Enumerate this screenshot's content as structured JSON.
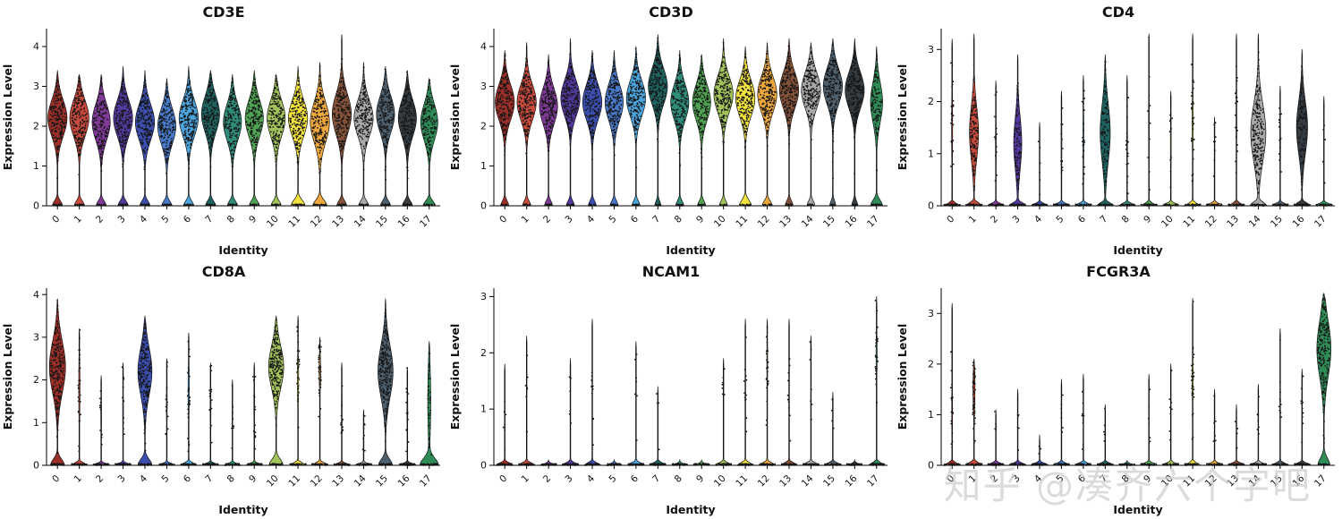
{
  "watermark": "知乎 @凑齐六个字吧",
  "axis": {
    "x_title": "Identity",
    "y_title": "Expression Level"
  },
  "chart_data": {
    "type": "violin",
    "description": "Single-cell gene expression violin plots (expression level per cluster identity) for six marker genes",
    "categories": [
      "0",
      "1",
      "2",
      "3",
      "4",
      "5",
      "6",
      "7",
      "8",
      "9",
      "10",
      "11",
      "12",
      "13",
      "14",
      "15",
      "16",
      "17"
    ],
    "palette": [
      "#9E2F28",
      "#C74A3C",
      "#7E3A96",
      "#53399E",
      "#3C4FB0",
      "#4878C8",
      "#4BA3DC",
      "#1F6360",
      "#2F8C78",
      "#4FA352",
      "#A2C25A",
      "#F2E23C",
      "#EEA83C",
      "#845239",
      "#A8A8A8",
      "#4E5F6E",
      "#343B41",
      "#2F8C57"
    ],
    "violin_fields": [
      "max_expression",
      "mode",
      "spread_sd",
      "body_width",
      "zero_width",
      "zero_height",
      "n_body_points",
      "n_zero_points"
    ],
    "panels": [
      {
        "title": "CD3E",
        "ylim": [
          0,
          4.45
        ],
        "yticks": [
          0,
          1,
          2,
          3,
          4
        ],
        "violins": [
          [
            3.4,
            2.2,
            0.45,
            0.95,
            0.5,
            0.12,
            200,
            25
          ],
          [
            3.3,
            2.2,
            0.45,
            0.95,
            0.5,
            0.12,
            190,
            25
          ],
          [
            3.3,
            2.1,
            0.45,
            0.9,
            0.5,
            0.12,
            170,
            25
          ],
          [
            3.5,
            2.2,
            0.45,
            0.95,
            0.5,
            0.12,
            200,
            25
          ],
          [
            3.4,
            2.1,
            0.45,
            0.95,
            0.5,
            0.12,
            200,
            25
          ],
          [
            3.2,
            2.0,
            0.45,
            0.9,
            0.5,
            0.12,
            180,
            25
          ],
          [
            3.5,
            2.2,
            0.45,
            0.95,
            0.5,
            0.12,
            200,
            25
          ],
          [
            3.4,
            2.3,
            0.45,
            0.9,
            0.5,
            0.12,
            180,
            25
          ],
          [
            3.3,
            2.1,
            0.45,
            0.9,
            0.5,
            0.12,
            170,
            25
          ],
          [
            3.4,
            2.2,
            0.45,
            0.9,
            0.5,
            0.12,
            180,
            25
          ],
          [
            3.3,
            2.2,
            0.45,
            0.9,
            0.5,
            0.12,
            170,
            25
          ],
          [
            3.5,
            2.2,
            0.45,
            0.95,
            0.7,
            0.14,
            190,
            30
          ],
          [
            3.6,
            2.1,
            0.5,
            0.95,
            0.7,
            0.14,
            190,
            30
          ],
          [
            4.3,
            2.3,
            0.5,
            0.95,
            0.5,
            0.12,
            200,
            25
          ],
          [
            3.6,
            2.2,
            0.45,
            0.95,
            0.5,
            0.12,
            190,
            25
          ],
          [
            3.5,
            2.3,
            0.45,
            0.9,
            0.5,
            0.12,
            180,
            25
          ],
          [
            3.4,
            2.2,
            0.45,
            0.9,
            0.5,
            0.12,
            180,
            25
          ],
          [
            3.2,
            2.1,
            0.45,
            0.85,
            0.6,
            0.12,
            150,
            25
          ]
        ]
      },
      {
        "title": "CD3D",
        "ylim": [
          0,
          4.45
        ],
        "yticks": [
          0,
          1,
          2,
          3,
          4
        ],
        "violins": [
          [
            3.9,
            2.6,
            0.45,
            0.95,
            0.4,
            0.12,
            210,
            20
          ],
          [
            4.1,
            2.6,
            0.45,
            0.95,
            0.4,
            0.12,
            210,
            20
          ],
          [
            3.8,
            2.5,
            0.45,
            0.9,
            0.4,
            0.12,
            180,
            20
          ],
          [
            4.2,
            2.7,
            0.45,
            0.95,
            0.4,
            0.12,
            210,
            20
          ],
          [
            3.9,
            2.6,
            0.45,
            0.95,
            0.4,
            0.12,
            200,
            20
          ],
          [
            3.9,
            2.6,
            0.45,
            0.9,
            0.4,
            0.12,
            190,
            20
          ],
          [
            4.0,
            2.7,
            0.45,
            0.95,
            0.4,
            0.12,
            200,
            20
          ],
          [
            4.3,
            3.0,
            0.45,
            0.95,
            0.3,
            0.12,
            210,
            15
          ],
          [
            3.9,
            2.6,
            0.45,
            0.9,
            0.4,
            0.12,
            180,
            20
          ],
          [
            3.8,
            2.6,
            0.45,
            0.9,
            0.4,
            0.12,
            180,
            20
          ],
          [
            4.2,
            2.8,
            0.45,
            0.95,
            0.4,
            0.12,
            200,
            20
          ],
          [
            4.0,
            2.7,
            0.45,
            0.95,
            0.6,
            0.14,
            200,
            25
          ],
          [
            4.1,
            2.8,
            0.45,
            0.95,
            0.5,
            0.12,
            200,
            20
          ],
          [
            4.2,
            2.9,
            0.45,
            0.95,
            0.4,
            0.12,
            200,
            20
          ],
          [
            4.1,
            2.9,
            0.45,
            0.95,
            0.4,
            0.12,
            200,
            20
          ],
          [
            4.2,
            3.0,
            0.45,
            0.95,
            0.3,
            0.12,
            210,
            15
          ],
          [
            4.2,
            2.9,
            0.45,
            0.95,
            0.3,
            0.12,
            210,
            15
          ],
          [
            4.0,
            2.6,
            0.5,
            0.6,
            0.6,
            0.14,
            120,
            25
          ]
        ]
      },
      {
        "title": "CD4",
        "ylim": [
          0,
          3.4
        ],
        "yticks": [
          0,
          1,
          2,
          3
        ],
        "violins": [
          [
            3.2,
            1.5,
            0.7,
            0.05,
            0.85,
            0.04,
            25,
            55
          ],
          [
            3.3,
            1.4,
            0.5,
            0.45,
            0.85,
            0.05,
            140,
            55
          ],
          [
            2.4,
            1.2,
            0.6,
            0.04,
            0.85,
            0.04,
            12,
            50
          ],
          [
            2.9,
            1.2,
            0.5,
            0.4,
            0.85,
            0.05,
            90,
            50
          ],
          [
            1.6,
            0.9,
            0.5,
            0.03,
            0.85,
            0.04,
            6,
            45
          ],
          [
            2.2,
            1.2,
            0.6,
            0.04,
            0.85,
            0.04,
            14,
            50
          ],
          [
            2.5,
            1.3,
            0.6,
            0.05,
            0.85,
            0.04,
            25,
            50
          ],
          [
            2.9,
            1.4,
            0.55,
            0.5,
            0.85,
            0.05,
            110,
            50
          ],
          [
            2.5,
            1.3,
            0.6,
            0.04,
            0.85,
            0.04,
            18,
            50
          ],
          [
            3.3,
            1.6,
            0.7,
            0.04,
            0.85,
            0.04,
            10,
            45
          ],
          [
            2.2,
            1.2,
            0.6,
            0.04,
            0.85,
            0.04,
            10,
            45
          ],
          [
            3.3,
            1.6,
            0.6,
            0.05,
            0.85,
            0.04,
            30,
            50
          ],
          [
            1.7,
            1.0,
            0.5,
            0.03,
            0.85,
            0.04,
            8,
            45
          ],
          [
            3.3,
            1.6,
            0.6,
            0.04,
            0.85,
            0.04,
            20,
            50
          ],
          [
            3.3,
            1.4,
            0.55,
            0.75,
            0.85,
            0.06,
            200,
            55
          ],
          [
            2.3,
            1.2,
            0.6,
            0.04,
            0.85,
            0.04,
            12,
            45
          ],
          [
            3.0,
            1.5,
            0.5,
            0.55,
            0.85,
            0.05,
            120,
            50
          ],
          [
            2.1,
            1.1,
            0.6,
            0.03,
            0.85,
            0.04,
            6,
            40
          ]
        ]
      },
      {
        "title": "CD8A",
        "ylim": [
          0,
          4.15
        ],
        "yticks": [
          0,
          1,
          2,
          3,
          4
        ],
        "violins": [
          [
            3.9,
            2.3,
            0.6,
            0.8,
            0.7,
            0.14,
            240,
            40
          ],
          [
            3.2,
            1.8,
            0.7,
            0.06,
            0.85,
            0.05,
            30,
            45
          ],
          [
            2.1,
            1.2,
            0.5,
            0.04,
            0.85,
            0.04,
            10,
            45
          ],
          [
            2.4,
            1.3,
            0.5,
            0.04,
            0.85,
            0.04,
            12,
            45
          ],
          [
            3.5,
            2.2,
            0.55,
            0.7,
            0.7,
            0.14,
            220,
            40
          ],
          [
            2.5,
            1.4,
            0.5,
            0.04,
            0.85,
            0.04,
            14,
            45
          ],
          [
            3.1,
            1.8,
            0.6,
            0.06,
            0.85,
            0.05,
            30,
            45
          ],
          [
            2.4,
            1.4,
            0.5,
            0.04,
            0.85,
            0.04,
            16,
            45
          ],
          [
            2.0,
            1.1,
            0.5,
            0.03,
            0.85,
            0.04,
            8,
            45
          ],
          [
            2.4,
            1.4,
            0.5,
            0.04,
            0.85,
            0.04,
            14,
            45
          ],
          [
            3.5,
            2.3,
            0.5,
            0.75,
            0.7,
            0.14,
            220,
            40
          ],
          [
            3.5,
            2.0,
            0.6,
            0.06,
            0.85,
            0.05,
            30,
            45
          ],
          [
            3.0,
            2.2,
            0.4,
            0.07,
            0.85,
            0.05,
            45,
            45
          ],
          [
            2.4,
            1.4,
            0.5,
            0.04,
            0.85,
            0.04,
            12,
            45
          ],
          [
            1.3,
            0.8,
            0.4,
            0.03,
            0.85,
            0.04,
            8,
            45
          ],
          [
            3.9,
            2.2,
            0.6,
            0.75,
            0.7,
            0.14,
            240,
            40
          ],
          [
            2.3,
            1.3,
            0.5,
            0.04,
            0.85,
            0.04,
            14,
            45
          ],
          [
            2.9,
            1.5,
            0.8,
            0.15,
            0.9,
            0.16,
            40,
            55
          ]
        ]
      },
      {
        "title": "NCAM1",
        "ylim": [
          0,
          3.15
        ],
        "yticks": [
          0,
          1,
          2,
          3
        ],
        "violins": [
          [
            1.8,
            1.0,
            0.5,
            0.03,
            0.85,
            0.04,
            6,
            50
          ],
          [
            2.3,
            1.3,
            0.5,
            0.03,
            0.85,
            0.04,
            8,
            50
          ],
          [
            0.1,
            0.05,
            0.1,
            0.02,
            0.85,
            0.04,
            0,
            50
          ],
          [
            1.9,
            1.1,
            0.5,
            0.03,
            0.85,
            0.04,
            6,
            50
          ],
          [
            2.6,
            1.5,
            0.6,
            0.03,
            0.85,
            0.04,
            10,
            50
          ],
          [
            0.1,
            0.05,
            0.1,
            0.02,
            0.85,
            0.04,
            0,
            50
          ],
          [
            2.2,
            1.3,
            0.5,
            0.03,
            0.85,
            0.04,
            8,
            50
          ],
          [
            1.4,
            0.8,
            0.4,
            0.03,
            0.85,
            0.04,
            4,
            50
          ],
          [
            0.1,
            0.05,
            0.1,
            0.02,
            0.85,
            0.04,
            0,
            50
          ],
          [
            0.1,
            0.05,
            0.1,
            0.02,
            0.85,
            0.04,
            0,
            50
          ],
          [
            1.9,
            1.1,
            0.5,
            0.03,
            0.85,
            0.04,
            8,
            50
          ],
          [
            2.6,
            1.6,
            0.5,
            0.03,
            0.85,
            0.04,
            12,
            50
          ],
          [
            2.6,
            1.8,
            0.5,
            0.04,
            0.85,
            0.04,
            25,
            50
          ],
          [
            2.6,
            1.5,
            0.5,
            0.03,
            0.85,
            0.04,
            10,
            50
          ],
          [
            2.3,
            1.3,
            0.5,
            0.03,
            0.85,
            0.04,
            8,
            50
          ],
          [
            1.3,
            0.8,
            0.4,
            0.03,
            0.85,
            0.04,
            4,
            50
          ],
          [
            0.1,
            0.05,
            0.1,
            0.02,
            0.85,
            0.04,
            0,
            50
          ],
          [
            3.0,
            2.0,
            0.4,
            0.05,
            0.85,
            0.04,
            30,
            50
          ]
        ]
      },
      {
        "title": "FCGR3A",
        "ylim": [
          0,
          3.5
        ],
        "yticks": [
          0,
          1,
          2,
          3
        ],
        "violins": [
          [
            3.2,
            1.0,
            0.6,
            0.04,
            0.85,
            0.04,
            20,
            50
          ],
          [
            2.1,
            1.5,
            0.4,
            0.1,
            0.85,
            0.05,
            60,
            50
          ],
          [
            1.1,
            0.7,
            0.4,
            0.03,
            0.85,
            0.04,
            5,
            45
          ],
          [
            1.5,
            0.9,
            0.4,
            0.03,
            0.85,
            0.04,
            6,
            45
          ],
          [
            0.6,
            0.4,
            0.3,
            0.02,
            0.85,
            0.04,
            3,
            45
          ],
          [
            1.7,
            1.0,
            0.4,
            0.03,
            0.85,
            0.04,
            8,
            45
          ],
          [
            1.8,
            1.0,
            0.4,
            0.03,
            0.85,
            0.04,
            10,
            45
          ],
          [
            1.2,
            0.7,
            0.4,
            0.03,
            0.85,
            0.04,
            5,
            45
          ],
          [
            0.1,
            0.05,
            0.1,
            0.02,
            0.85,
            0.04,
            0,
            45
          ],
          [
            1.8,
            1.0,
            0.4,
            0.03,
            0.85,
            0.04,
            6,
            45
          ],
          [
            2.0,
            1.2,
            0.5,
            0.03,
            0.85,
            0.04,
            8,
            45
          ],
          [
            3.3,
            1.7,
            0.5,
            0.05,
            0.85,
            0.04,
            30,
            45
          ],
          [
            1.5,
            0.9,
            0.4,
            0.03,
            0.85,
            0.04,
            6,
            45
          ],
          [
            1.2,
            0.7,
            0.4,
            0.03,
            0.85,
            0.04,
            5,
            45
          ],
          [
            1.6,
            0.9,
            0.4,
            0.03,
            0.85,
            0.04,
            8,
            45
          ],
          [
            2.7,
            1.5,
            0.5,
            0.03,
            0.85,
            0.04,
            10,
            45
          ],
          [
            1.9,
            1.1,
            0.4,
            0.03,
            0.85,
            0.04,
            10,
            45
          ],
          [
            3.4,
            2.3,
            0.55,
            0.7,
            0.6,
            0.14,
            200,
            30
          ]
        ]
      }
    ]
  }
}
